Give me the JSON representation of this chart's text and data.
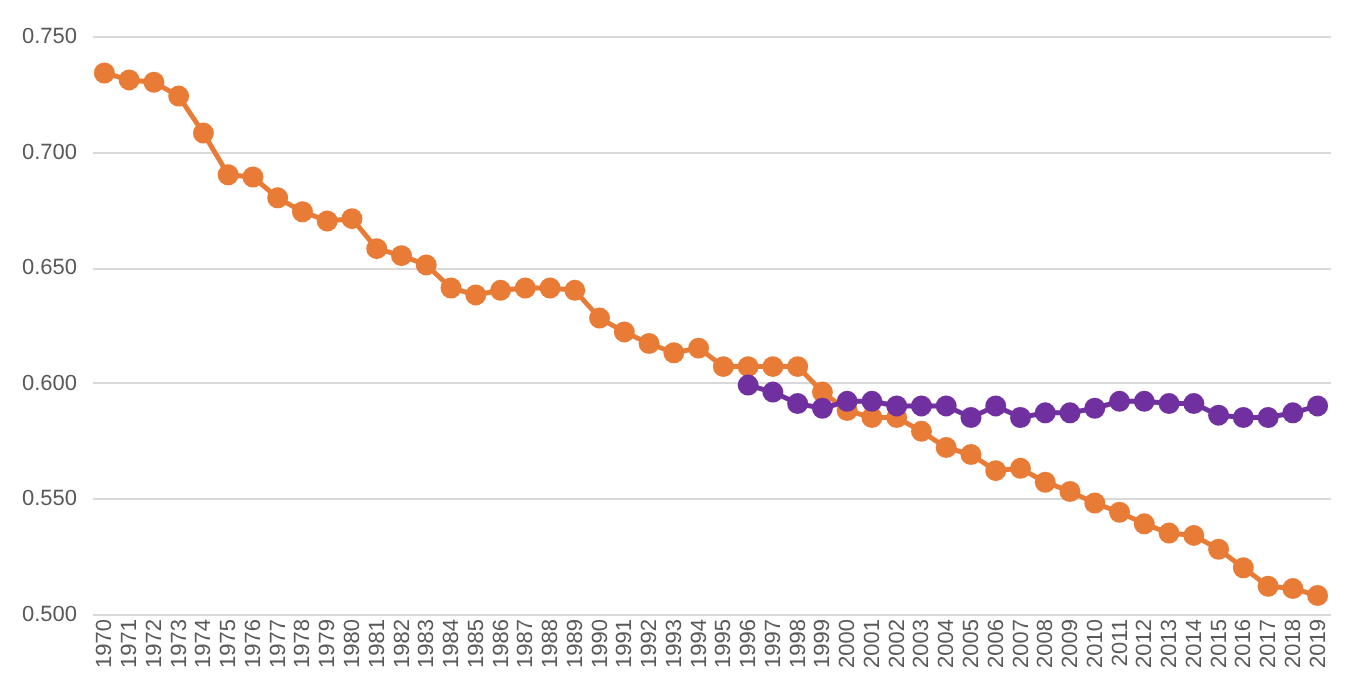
{
  "chart_data": {
    "type": "line",
    "categories": [
      "1970",
      "1971",
      "1972",
      "1973",
      "1974",
      "1975",
      "1976",
      "1977",
      "1978",
      "1979",
      "1980",
      "1981",
      "1982",
      "1983",
      "1984",
      "1985",
      "1986",
      "1987",
      "1988",
      "1989",
      "1990",
      "1991",
      "1992",
      "1993",
      "1994",
      "1995",
      "1996",
      "1997",
      "1998",
      "1999",
      "2000",
      "2001",
      "2002",
      "2003",
      "2004",
      "2005",
      "2006",
      "2007",
      "2008",
      "2009",
      "2010",
      "2011",
      "2012",
      "2013",
      "2014",
      "2015",
      "2016",
      "2017",
      "2018",
      "2019"
    ],
    "series": [
      {
        "color": "#e87b35",
        "values": [
          0.734,
          0.731,
          0.73,
          0.724,
          0.708,
          0.69,
          0.689,
          0.68,
          0.674,
          0.67,
          0.671,
          0.658,
          0.655,
          0.651,
          0.641,
          0.638,
          0.64,
          0.641,
          0.641,
          0.64,
          0.628,
          0.622,
          0.617,
          0.613,
          0.615,
          0.607,
          0.607,
          0.607,
          0.607,
          0.596,
          0.588,
          0.585,
          0.585,
          0.579,
          0.572,
          0.569,
          0.562,
          0.563,
          0.557,
          0.553,
          0.548,
          0.544,
          0.539,
          0.535,
          0.534,
          0.528,
          0.52,
          0.512,
          0.511,
          0.508
        ]
      },
      {
        "color": "#7030a0",
        "values": [
          null,
          null,
          null,
          null,
          null,
          null,
          null,
          null,
          null,
          null,
          null,
          null,
          null,
          null,
          null,
          null,
          null,
          null,
          null,
          null,
          null,
          null,
          null,
          null,
          null,
          null,
          0.599,
          0.596,
          0.591,
          0.589,
          0.592,
          0.592,
          0.59,
          0.59,
          0.59,
          0.585,
          0.59,
          0.585,
          0.587,
          0.587,
          0.589,
          0.592,
          0.592,
          0.591,
          0.591,
          0.586,
          0.585,
          0.585,
          0.587,
          0.59
        ]
      }
    ],
    "ylim": [
      0.5,
      0.75
    ],
    "yticks": [
      {
        "value": 0.5,
        "label": "0.500"
      },
      {
        "value": 0.55,
        "label": "0.550"
      },
      {
        "value": 0.6,
        "label": "0.600"
      },
      {
        "value": 0.65,
        "label": "0.650"
      },
      {
        "value": 0.7,
        "label": "0.700"
      },
      {
        "value": 0.75,
        "label": "0.750"
      }
    ],
    "grid": "y",
    "legend": false,
    "marker": "circle",
    "line_style": "solid"
  }
}
